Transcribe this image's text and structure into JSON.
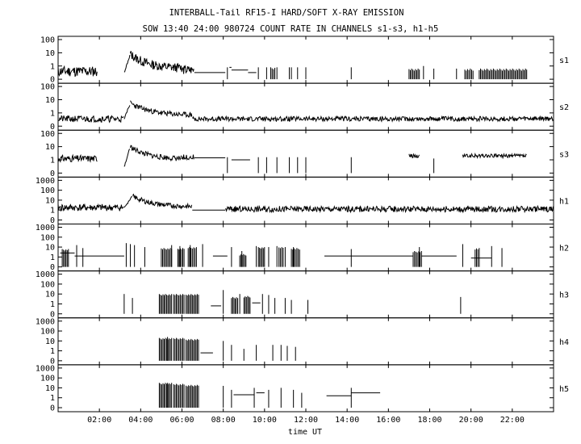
{
  "chart_data": {
    "type": "line",
    "title": "INTERBALL-Tail RF15-I HARD/SOFT X-RAY EMISSION",
    "subtitle": "SOW 13:40 24:00 980724  COUNT RATE IN CHANNELS s1-s3, h1-h5",
    "xlabel": "time UT",
    "xlim_hours": [
      0,
      24
    ],
    "x_ticks": [
      {
        "hour": 2,
        "label": "02:00"
      },
      {
        "hour": 4,
        "label": "04:00"
      },
      {
        "hour": 6,
        "label": "06:00"
      },
      {
        "hour": 8,
        "label": "08:00"
      },
      {
        "hour": 10,
        "label": "10:00"
      },
      {
        "hour": 12,
        "label": "12:00"
      },
      {
        "hour": 14,
        "label": "14:00"
      },
      {
        "hour": 16,
        "label": "16:00"
      },
      {
        "hour": 18,
        "label": "18:00"
      },
      {
        "hour": 20,
        "label": "20:00"
      },
      {
        "hour": 22,
        "label": "22:00"
      }
    ],
    "y_scale": "log (0 at bottom)",
    "grid": false,
    "panels": [
      {
        "name": "s1",
        "ymax_exp": 2,
        "y_ticks": [
          "0",
          "1",
          "10",
          "100"
        ],
        "segments": [
          {
            "t0": 0.0,
            "t1": 1.9,
            "type": "noise",
            "level": 0.6,
            "amp": 0.4,
            "seed": 11
          },
          {
            "t0": 3.2,
            "t1": 3.5,
            "type": "rise",
            "from": 0.5,
            "to": 1.9,
            "seed": 12
          },
          {
            "t0": 3.5,
            "t1": 6.0,
            "type": "decay",
            "from": 1.9,
            "to": 0.8,
            "amp": 0.35,
            "seed": 13
          },
          {
            "t0": 6.0,
            "t1": 6.6,
            "type": "noise",
            "level": 0.7,
            "amp": 0.35,
            "seed": 14
          },
          {
            "t0": 6.6,
            "t1": 8.1,
            "type": "flat",
            "level": 0.5
          },
          {
            "t0": 8.3,
            "t1": 8.4,
            "type": "flat",
            "level": 0.9
          },
          {
            "t0": 8.4,
            "t1": 9.2,
            "type": "flat",
            "level": 0.7
          },
          {
            "t0": 9.2,
            "t1": 9.6,
            "type": "flat",
            "level": 0.5
          }
        ],
        "bursts": [
          {
            "t": 8.2,
            "level": 0.9
          },
          {
            "t": 9.7,
            "level": 0.9
          },
          {
            "t": 10.1,
            "level": 0.9
          },
          {
            "t": 10.6,
            "level": 0.9
          },
          {
            "t": 11.2,
            "level": 0.9
          },
          {
            "t": 11.3,
            "level": 0.9
          },
          {
            "t": 11.6,
            "level": 0.9
          },
          {
            "t": 12.0,
            "level": 0.9
          },
          {
            "t": 14.2,
            "level": 0.9
          },
          {
            "t": 17.7,
            "level": 1.0
          },
          {
            "t": 18.2,
            "level": 0.8
          },
          {
            "t": 19.3,
            "level": 0.8
          }
        ],
        "blocks": [
          {
            "t0": 10.3,
            "t1": 10.5,
            "level": 0.9
          },
          {
            "t0": 17.0,
            "t1": 17.5,
            "level": 0.8
          },
          {
            "t0": 19.7,
            "t1": 20.1,
            "level": 0.8
          },
          {
            "t0": 20.4,
            "t1": 22.7,
            "level": 0.8
          }
        ]
      },
      {
        "name": "s2",
        "ymax_exp": 2,
        "y_ticks": [
          "0",
          "1",
          "10",
          "100"
        ],
        "segments": [
          {
            "t0": 0.0,
            "t1": 3.2,
            "type": "noise",
            "level": 0.55,
            "amp": 0.25,
            "seed": 21
          },
          {
            "t0": 3.2,
            "t1": 3.5,
            "type": "rise",
            "from": 0.6,
            "to": 1.75,
            "seed": 22
          },
          {
            "t0": 3.5,
            "t1": 6.5,
            "type": "decay",
            "from": 1.75,
            "to": 0.8,
            "amp": 0.2,
            "seed": 23
          },
          {
            "t0": 6.5,
            "t1": 24.0,
            "type": "noise",
            "level": 0.55,
            "amp": 0.18,
            "seed": 24
          }
        ],
        "bursts": [],
        "blocks": []
      },
      {
        "name": "s3",
        "ymax_exp": 2,
        "y_ticks": [
          "0",
          "1",
          "10",
          "100"
        ],
        "segments": [
          {
            "t0": 0.0,
            "t1": 1.9,
            "type": "noise",
            "level": 1.1,
            "amp": 0.25,
            "seed": 31
          },
          {
            "t0": 3.2,
            "t1": 3.5,
            "type": "rise",
            "from": 0.5,
            "to": 2.0,
            "seed": 32
          },
          {
            "t0": 3.5,
            "t1": 6.0,
            "type": "decay",
            "from": 2.0,
            "to": 1.05,
            "amp": 0.2,
            "seed": 33
          },
          {
            "t0": 6.0,
            "t1": 6.6,
            "type": "noise",
            "level": 1.2,
            "amp": 0.2,
            "seed": 34
          },
          {
            "t0": 6.6,
            "t1": 8.1,
            "type": "flat",
            "level": 1.15
          },
          {
            "t0": 8.4,
            "t1": 9.3,
            "type": "flat",
            "level": 1.0
          },
          {
            "t0": 17.0,
            "t1": 17.5,
            "type": "noise",
            "level": 1.3,
            "amp": 0.15,
            "seed": 35
          },
          {
            "t0": 19.6,
            "t1": 22.7,
            "type": "noise",
            "level": 1.3,
            "amp": 0.15,
            "seed": 36
          }
        ],
        "bursts": [
          {
            "t": 8.2,
            "level": 1.2
          },
          {
            "t": 9.7,
            "level": 1.2
          },
          {
            "t": 10.1,
            "level": 1.2
          },
          {
            "t": 10.6,
            "level": 1.2
          },
          {
            "t": 11.2,
            "level": 1.2
          },
          {
            "t": 11.6,
            "level": 1.2
          },
          {
            "t": 12.0,
            "level": 1.2
          },
          {
            "t": 14.2,
            "level": 1.2
          },
          {
            "t": 18.2,
            "level": 1.1
          }
        ],
        "blocks": []
      },
      {
        "name": "h1",
        "ymax_exp": 3,
        "y_ticks": [
          "0",
          "1",
          "10",
          "100",
          "1000"
        ],
        "segments": [
          {
            "t0": 0.0,
            "t1": 3.2,
            "type": "noise",
            "level": 1.25,
            "amp": 0.35,
            "seed": 41
          },
          {
            "t0": 3.2,
            "t1": 3.6,
            "type": "rise",
            "from": 1.2,
            "to": 2.4,
            "seed": 42
          },
          {
            "t0": 3.6,
            "t1": 6.5,
            "type": "decay",
            "from": 2.4,
            "to": 1.3,
            "amp": 0.25,
            "seed": 43
          },
          {
            "t0": 6.5,
            "t1": 8.1,
            "type": "flat",
            "level": 1.0
          },
          {
            "t0": 8.1,
            "t1": 24.0,
            "type": "noise",
            "level": 1.1,
            "amp": 0.3,
            "seed": 44
          }
        ],
        "bursts": [],
        "blocks": []
      },
      {
        "name": "h2",
        "ymax_exp": 3,
        "y_ticks": [
          "0",
          "1",
          "10",
          "100",
          "1000"
        ],
        "segments": [
          {
            "t0": 0.1,
            "t1": 0.8,
            "type": "flat",
            "level": 1.4
          },
          {
            "t0": 0.8,
            "t1": 3.2,
            "type": "flat",
            "level": 1.1
          },
          {
            "t0": 7.5,
            "t1": 8.2,
            "type": "flat",
            "level": 1.1
          },
          {
            "t0": 12.9,
            "t1": 17.2,
            "type": "flat",
            "level": 1.1
          },
          {
            "t0": 17.6,
            "t1": 19.3,
            "type": "flat",
            "level": 1.1
          },
          {
            "t0": 20.0,
            "t1": 21.0,
            "type": "flat",
            "level": 0.9
          }
        ],
        "bursts": [
          {
            "t": 0.9,
            "level": 2.2
          },
          {
            "t": 1.2,
            "level": 1.9
          },
          {
            "t": 3.3,
            "level": 2.4
          },
          {
            "t": 3.5,
            "level": 2.3
          },
          {
            "t": 3.7,
            "level": 2.2
          },
          {
            "t": 4.2,
            "level": 2.0
          },
          {
            "t": 5.5,
            "level": 2.2
          },
          {
            "t": 5.9,
            "level": 2.1
          },
          {
            "t": 6.4,
            "level": 2.2
          },
          {
            "t": 7.0,
            "level": 2.3
          },
          {
            "t": 8.4,
            "level": 2.0
          },
          {
            "t": 8.9,
            "level": 1.6
          },
          {
            "t": 9.6,
            "level": 2.1
          },
          {
            "t": 10.2,
            "level": 2.0
          },
          {
            "t": 10.6,
            "level": 2.1
          },
          {
            "t": 11.0,
            "level": 2.0
          },
          {
            "t": 11.4,
            "level": 2.0
          },
          {
            "t": 14.2,
            "level": 1.8
          },
          {
            "t": 17.5,
            "level": 2.0
          },
          {
            "t": 19.6,
            "level": 2.3
          },
          {
            "t": 21.0,
            "level": 2.1
          },
          {
            "t": 21.5,
            "level": 1.9
          }
        ],
        "blocks": [
          {
            "t0": 0.2,
            "t1": 0.5,
            "level": 1.8
          },
          {
            "t0": 5.0,
            "t1": 5.5,
            "level": 1.9
          },
          {
            "t0": 5.8,
            "t1": 6.1,
            "level": 1.9
          },
          {
            "t0": 6.3,
            "t1": 6.7,
            "level": 2.0
          },
          {
            "t0": 8.8,
            "t1": 9.1,
            "level": 1.3
          },
          {
            "t0": 9.7,
            "t1": 10.0,
            "level": 2.0
          },
          {
            "t0": 10.7,
            "t1": 10.9,
            "level": 2.0
          },
          {
            "t0": 11.3,
            "t1": 11.7,
            "level": 1.9
          },
          {
            "t0": 17.2,
            "t1": 17.6,
            "level": 1.6
          },
          {
            "t0": 20.2,
            "t1": 20.4,
            "level": 1.9
          }
        ]
      },
      {
        "name": "h3",
        "ymax_exp": 3,
        "y_ticks": [
          "0",
          "1",
          "10",
          "100",
          "1000"
        ],
        "segments": [
          {
            "t0": 7.4,
            "t1": 7.9,
            "type": "flat",
            "level": 0.8
          },
          {
            "t0": 9.4,
            "t1": 9.8,
            "type": "flat",
            "level": 1.1
          }
        ],
        "bursts": [
          {
            "t": 3.2,
            "level": 2.0
          },
          {
            "t": 3.6,
            "level": 1.6
          },
          {
            "t": 8.0,
            "level": 2.4
          },
          {
            "t": 8.8,
            "level": 2.0
          },
          {
            "t": 9.9,
            "level": 2.0
          },
          {
            "t": 10.2,
            "level": 1.9
          },
          {
            "t": 10.5,
            "level": 1.6
          },
          {
            "t": 11.0,
            "level": 1.6
          },
          {
            "t": 11.3,
            "level": 1.4
          },
          {
            "t": 12.1,
            "level": 1.4
          },
          {
            "t": 19.5,
            "level": 1.7
          }
        ],
        "blocks": [
          {
            "t0": 4.9,
            "t1": 5.5,
            "level": 2.0
          },
          {
            "t0": 5.6,
            "t1": 6.1,
            "level": 2.0
          },
          {
            "t0": 6.2,
            "t1": 6.8,
            "level": 2.0
          },
          {
            "t0": 8.4,
            "t1": 8.7,
            "level": 1.7
          },
          {
            "t0": 9.0,
            "t1": 9.3,
            "level": 1.8
          }
        ]
      },
      {
        "name": "h4",
        "ymax_exp": 3,
        "y_ticks": [
          "0",
          "1",
          "10",
          "100",
          "1000"
        ],
        "segments": [
          {
            "t0": 6.9,
            "t1": 7.5,
            "type": "flat",
            "level": 0.8
          }
        ],
        "bursts": [
          {
            "t": 5.3,
            "level": 2.4
          },
          {
            "t": 8.0,
            "level": 2.0
          },
          {
            "t": 8.4,
            "level": 1.6
          },
          {
            "t": 9.0,
            "level": 1.2
          },
          {
            "t": 9.6,
            "level": 1.6
          },
          {
            "t": 10.4,
            "level": 1.6
          },
          {
            "t": 10.8,
            "level": 1.6
          },
          {
            "t": 11.1,
            "level": 1.5
          },
          {
            "t": 11.5,
            "level": 1.4
          }
        ],
        "blocks": [
          {
            "t0": 4.9,
            "t1": 5.5,
            "level": 2.3
          },
          {
            "t0": 5.6,
            "t1": 6.1,
            "level": 2.3
          },
          {
            "t0": 6.2,
            "t1": 6.8,
            "level": 2.2
          }
        ]
      },
      {
        "name": "h5",
        "ymax_exp": 3,
        "y_ticks": [
          "0",
          "1",
          "10",
          "100",
          "1000"
        ],
        "segments": [
          {
            "t0": 8.5,
            "t1": 9.5,
            "type": "flat",
            "level": 1.3
          },
          {
            "t0": 9.6,
            "t1": 10.0,
            "type": "flat",
            "level": 1.5
          },
          {
            "t0": 13.0,
            "t1": 14.2,
            "type": "flat",
            "level": 1.2
          },
          {
            "t0": 14.2,
            "t1": 15.6,
            "type": "flat",
            "level": 1.5
          }
        ],
        "bursts": [
          {
            "t": 5.3,
            "level": 2.5
          },
          {
            "t": 8.0,
            "level": 2.2
          },
          {
            "t": 8.4,
            "level": 1.8
          },
          {
            "t": 9.5,
            "level": 2.0
          },
          {
            "t": 10.2,
            "level": 1.8
          },
          {
            "t": 10.8,
            "level": 2.0
          },
          {
            "t": 11.4,
            "level": 1.8
          },
          {
            "t": 11.8,
            "level": 1.5
          },
          {
            "t": 14.2,
            "level": 2.0
          }
        ],
        "blocks": [
          {
            "t0": 4.9,
            "t1": 5.5,
            "level": 2.5
          },
          {
            "t0": 5.6,
            "t1": 6.1,
            "level": 2.4
          },
          {
            "t0": 6.2,
            "t1": 6.8,
            "level": 2.3
          }
        ]
      }
    ]
  }
}
